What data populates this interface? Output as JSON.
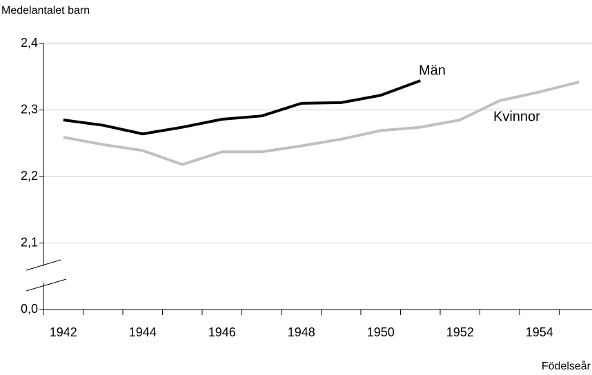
{
  "chart_data": {
    "type": "line",
    "y_label": "Medelantalet barn",
    "x_label": "Födelseår",
    "categories": [
      "1942",
      null,
      "1944",
      null,
      "1946",
      null,
      "1948",
      null,
      "1950",
      null,
      "1952",
      null,
      "1954",
      null
    ],
    "series": [
      {
        "name": "Män",
        "color": "#000000",
        "values": [
          2.285,
          2.277,
          2.264,
          2.274,
          2.286,
          2.291,
          2.31,
          2.311,
          2.322,
          2.344,
          null,
          null,
          null,
          null
        ]
      },
      {
        "name": "Kvinnor",
        "color": "#c0c0c0",
        "values": [
          2.259,
          2.248,
          2.239,
          2.218,
          2.237,
          2.237,
          2.246,
          2.256,
          2.269,
          2.274,
          2.285,
          2.314,
          2.327,
          2.342
        ]
      }
    ],
    "ylim": [
      0,
      2.4
    ],
    "yticks": [
      {
        "value": 0,
        "label": "0,0"
      },
      {
        "value": 2.1,
        "label": "2,1"
      },
      {
        "value": 2.2,
        "label": "2,2"
      },
      {
        "value": 2.3,
        "label": "2,3"
      },
      {
        "value": 2.4,
        "label": "2,4"
      }
    ],
    "y_break": true,
    "grid": true
  }
}
